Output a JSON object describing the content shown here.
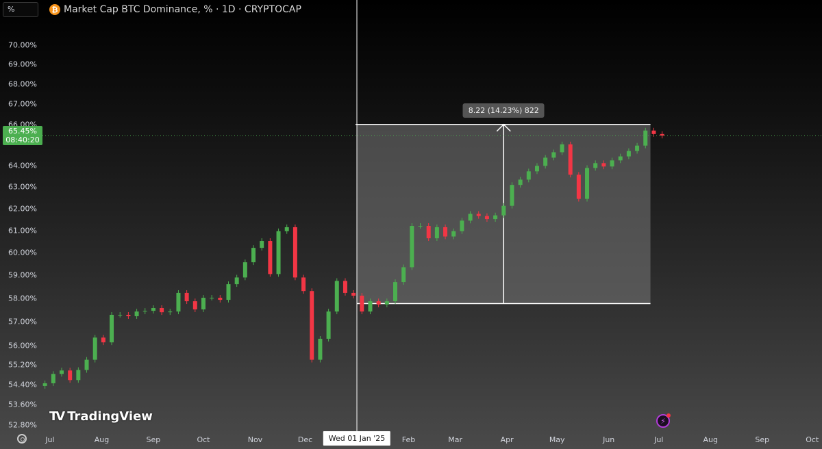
{
  "header": {
    "scale_input": "%",
    "symbol_icon": "bitcoin-icon",
    "title": "Market Cap BTC Dominance, % · 1D · CRYPTOCAP"
  },
  "price_tag": {
    "price": "65.45%",
    "countdown": "08:40:20",
    "color": "#4caf50"
  },
  "crosshair": {
    "date": "2025-01-01",
    "label": "Wed 01 Jan '25"
  },
  "measure": {
    "label": "8.22 (14.23%) 822",
    "from_date": "2025-01-01",
    "to_date": "2025-06-26",
    "from_price": 57.78,
    "to_price": 66.0
  },
  "branding": {
    "logo_text": "TradingView"
  },
  "colors": {
    "up": "#4caf50",
    "down": "#f23645"
  },
  "chart_data": {
    "type": "candlestick",
    "y_scale": "log",
    "ylim": [
      52.4,
      71.0
    ],
    "y_ticks": [
      "70.00%",
      "69.00%",
      "68.00%",
      "67.00%",
      "66.00%",
      "64.00%",
      "63.00%",
      "62.00%",
      "61.00%",
      "60.00%",
      "59.00%",
      "58.00%",
      "57.00%",
      "56.00%",
      "55.20%",
      "54.40%",
      "53.60%",
      "52.80%"
    ],
    "x_ticks": [
      {
        "label": "Jul",
        "date": "2024-07-01"
      },
      {
        "label": "Aug",
        "date": "2024-08-01"
      },
      {
        "label": "Sep",
        "date": "2024-09-01"
      },
      {
        "label": "Oct",
        "date": "2024-10-01"
      },
      {
        "label": "Nov",
        "date": "2024-11-01"
      },
      {
        "label": "Dec",
        "date": "2024-12-01"
      },
      {
        "label": "Feb",
        "date": "2025-02-01"
      },
      {
        "label": "Mar",
        "date": "2025-03-01"
      },
      {
        "label": "Apr",
        "date": "2025-04-01"
      },
      {
        "label": "May",
        "date": "2025-05-01"
      },
      {
        "label": "Jun",
        "date": "2025-06-01"
      },
      {
        "label": "Jul",
        "date": "2025-07-01"
      },
      {
        "label": "Aug",
        "date": "2025-08-01"
      },
      {
        "label": "Sep",
        "date": "2025-09-01"
      },
      {
        "label": "Oct",
        "date": "2025-10-01"
      }
    ],
    "points": [
      [
        "2024-06-28",
        54.46
      ],
      [
        "2024-07-03",
        54.84
      ],
      [
        "2024-07-08",
        54.98
      ],
      [
        "2024-07-13",
        54.59
      ],
      [
        "2024-07-18",
        55.0
      ],
      [
        "2024-07-23",
        55.42
      ],
      [
        "2024-07-28",
        56.34
      ],
      [
        "2024-08-02",
        56.14
      ],
      [
        "2024-08-07",
        57.3
      ],
      [
        "2024-08-12",
        57.3
      ],
      [
        "2024-08-17",
        57.24
      ],
      [
        "2024-08-22",
        57.44
      ],
      [
        "2024-08-27",
        57.47
      ],
      [
        "2024-09-01",
        57.59
      ],
      [
        "2024-09-06",
        57.41
      ],
      [
        "2024-09-11",
        57.44
      ],
      [
        "2024-09-16",
        58.24
      ],
      [
        "2024-09-21",
        57.88
      ],
      [
        "2024-09-26",
        57.53
      ],
      [
        "2024-10-01",
        58.03
      ],
      [
        "2024-10-06",
        58.03
      ],
      [
        "2024-10-11",
        57.94
      ],
      [
        "2024-10-16",
        58.62
      ],
      [
        "2024-10-21",
        58.91
      ],
      [
        "2024-10-26",
        59.58
      ],
      [
        "2024-10-31",
        60.22
      ],
      [
        "2024-11-05",
        60.53
      ],
      [
        "2024-11-10",
        59.06
      ],
      [
        "2024-11-15",
        60.97
      ],
      [
        "2024-11-20",
        61.15
      ],
      [
        "2024-11-25",
        58.91
      ],
      [
        "2024-11-30",
        58.32
      ],
      [
        "2024-12-05",
        55.42
      ],
      [
        "2024-12-10",
        56.29
      ],
      [
        "2024-12-15",
        57.44
      ],
      [
        "2024-12-20",
        58.76
      ],
      [
        "2024-12-25",
        58.24
      ],
      [
        "2024-12-30",
        58.12
      ],
      [
        "2025-01-04",
        57.44
      ],
      [
        "2025-01-09",
        57.88
      ],
      [
        "2025-01-14",
        57.74
      ],
      [
        "2025-01-19",
        57.88
      ],
      [
        "2025-01-24",
        58.71
      ],
      [
        "2025-01-29",
        59.36
      ],
      [
        "2025-02-03",
        61.21
      ],
      [
        "2025-02-08",
        61.21
      ],
      [
        "2025-02-13",
        60.65
      ],
      [
        "2025-02-18",
        61.15
      ],
      [
        "2025-02-23",
        60.73
      ],
      [
        "2025-02-28",
        60.97
      ],
      [
        "2025-03-05",
        61.45
      ],
      [
        "2025-03-10",
        61.76
      ],
      [
        "2025-03-15",
        61.66
      ],
      [
        "2025-03-20",
        61.52
      ],
      [
        "2025-03-25",
        61.69
      ],
      [
        "2025-03-30",
        62.13
      ],
      [
        "2025-04-04",
        63.1
      ],
      [
        "2025-04-09",
        63.35
      ],
      [
        "2025-04-14",
        63.74
      ],
      [
        "2025-04-19",
        64.0
      ],
      [
        "2025-04-24",
        64.39
      ],
      [
        "2025-04-29",
        64.65
      ],
      [
        "2025-05-04",
        65.03
      ],
      [
        "2025-05-09",
        63.58
      ],
      [
        "2025-05-14",
        62.45
      ],
      [
        "2025-05-19",
        63.9
      ],
      [
        "2025-05-24",
        64.13
      ],
      [
        "2025-05-29",
        63.97
      ],
      [
        "2025-06-03",
        64.26
      ],
      [
        "2025-06-08",
        64.45
      ],
      [
        "2025-06-13",
        64.71
      ],
      [
        "2025-06-18",
        64.97
      ],
      [
        "2025-06-23",
        65.7
      ],
      [
        "2025-06-28",
        65.53
      ],
      [
        "2025-07-03",
        65.45
      ]
    ]
  }
}
